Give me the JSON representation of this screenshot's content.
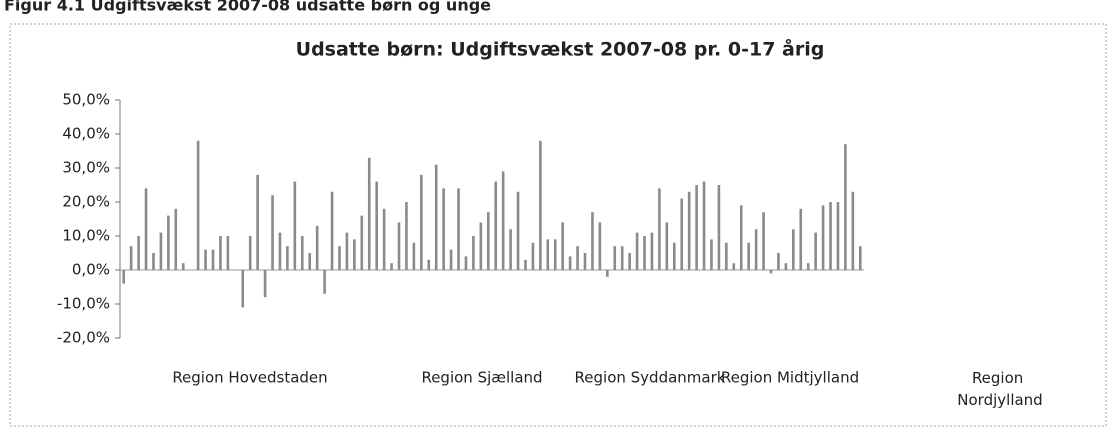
{
  "caption": "Figur 4.1 Udgiftsvækst 2007-08 udsatte børn og unge",
  "chart_data": {
    "type": "bar",
    "title": "Udsatte børn: Udgiftsvækst 2007-08 pr. 0-17 årig",
    "regions": [
      "Region Hovedstaden",
      "Region Sjælland",
      "Region Syddanmark",
      "Region Midtjylland",
      "Region Nordjylland"
    ],
    "values": [
      -4,
      7,
      10,
      24,
      5,
      11,
      16,
      18,
      2,
      0,
      38,
      6,
      6,
      10,
      10,
      0,
      -11,
      10,
      28,
      -8,
      22,
      11,
      7,
      26,
      10,
      5,
      13,
      -7,
      23,
      7,
      11,
      9,
      16,
      33,
      26,
      18,
      2,
      14,
      20,
      8,
      28,
      3,
      31,
      24,
      6,
      24,
      4,
      10,
      14,
      17,
      26,
      29,
      12,
      23,
      3,
      8,
      38,
      9,
      9,
      14,
      4,
      7,
      5,
      17,
      14,
      -2,
      7,
      7,
      5,
      11,
      10,
      11,
      24,
      14,
      8,
      21,
      23,
      25,
      26,
      9,
      25,
      8,
      2,
      19,
      8,
      12,
      17,
      -1,
      5,
      2,
      12,
      18,
      2,
      11,
      19,
      20,
      20,
      37,
      23,
      7
    ],
    "color": "#8a8a8a",
    "ylim": [
      -20,
      50
    ],
    "yticks": [
      {
        "value": -20,
        "label": "-20,0%"
      },
      {
        "value": -10,
        "label": "-10,0%"
      },
      {
        "value": 0,
        "label": "0,0%"
      },
      {
        "value": 10,
        "label": "10,0%"
      },
      {
        "value": 20,
        "label": "20,0%"
      },
      {
        "value": 30,
        "label": "30,0%"
      },
      {
        "value": 40,
        "label": "40,0%"
      },
      {
        "value": 50,
        "label": "50,0%"
      }
    ],
    "grid": false
  }
}
